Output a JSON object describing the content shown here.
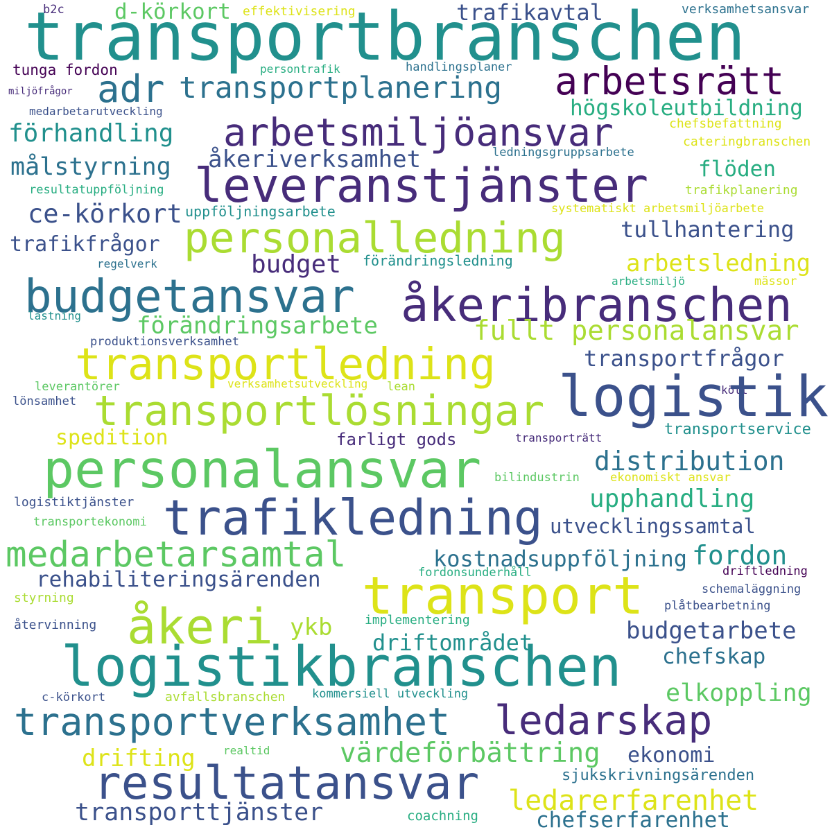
{
  "palette": {
    "background": "#ffffff",
    "c1": "#440154",
    "c2": "#472c7a",
    "c3": "#3b518b",
    "c4": "#2c718e",
    "c5": "#21908d",
    "c6": "#27ad81",
    "c7": "#5cc863",
    "c8": "#aadc32",
    "c9": "#dde318",
    "c10": "#fde725"
  },
  "words": [
    {
      "text": "transportbranschen",
      "color": "#21908d"
    },
    {
      "text": "b2c",
      "color": "#472c7a"
    },
    {
      "text": "d-körkort",
      "color": "#5cc863"
    },
    {
      "text": "effektivisering",
      "color": "#dde318"
    },
    {
      "text": "trafikavtal",
      "color": "#3b518b"
    },
    {
      "text": "verksamhetsansvar",
      "color": "#2c718e"
    },
    {
      "text": "adr",
      "color": "#2c718e"
    },
    {
      "text": "transportplanering",
      "color": "#2c718e"
    },
    {
      "text": "arbetsrätt",
      "color": "#440154"
    },
    {
      "text": "tunga fordon",
      "color": "#440154"
    },
    {
      "text": "persontrafik",
      "color": "#27ad81"
    },
    {
      "text": "handlingsplaner",
      "color": "#2c718e"
    },
    {
      "text": "miljöfrågor",
      "color": "#472c7a"
    },
    {
      "text": "medarbetarutveckling",
      "color": "#3b518b"
    },
    {
      "text": "högskoleutbildning",
      "color": "#27ad81"
    },
    {
      "text": "förhandling",
      "color": "#21908d"
    },
    {
      "text": "arbetsmiljöansvar",
      "color": "#472c7a"
    },
    {
      "text": "chefsbefattning",
      "color": "#dde318"
    },
    {
      "text": "cateringbranschen",
      "color": "#dde318"
    },
    {
      "text": "ledningsgruppsarbete",
      "color": "#2c718e"
    },
    {
      "text": "målstyrning",
      "color": "#2c718e"
    },
    {
      "text": "åkeriverksamhet",
      "color": "#3b518b"
    },
    {
      "text": "leveranstjänster",
      "color": "#472c7a"
    },
    {
      "text": "flöden",
      "color": "#27ad81"
    },
    {
      "text": "resultatuppföljning",
      "color": "#27ad81"
    },
    {
      "text": "trafikplanering",
      "color": "#aadc32"
    },
    {
      "text": "ce-körkort",
      "color": "#3b518b"
    },
    {
      "text": "uppföljningsarbete",
      "color": "#21908d"
    },
    {
      "text": "systematiskt arbetsmiljöarbete",
      "color": "#dde318"
    },
    {
      "text": "personalledning",
      "color": "#aadc32"
    },
    {
      "text": "tullhantering",
      "color": "#3b518b"
    },
    {
      "text": "trafikfrågor",
      "color": "#3b518b"
    },
    {
      "text": "budget",
      "color": "#472c7a"
    },
    {
      "text": "förändringsledning",
      "color": "#21908d"
    },
    {
      "text": "arbetsledning",
      "color": "#dde318"
    },
    {
      "text": "regelverk",
      "color": "#2c718e"
    },
    {
      "text": "arbetsmiljö",
      "color": "#27ad81"
    },
    {
      "text": "mässor",
      "color": "#dde318"
    },
    {
      "text": "budgetansvar",
      "color": "#2c718e"
    },
    {
      "text": "åkeribranschen",
      "color": "#472c7a"
    },
    {
      "text": "lastning",
      "color": "#21908d"
    },
    {
      "text": "förändringsarbete",
      "color": "#5cc863"
    },
    {
      "text": "fullt personalansvar",
      "color": "#aadc32"
    },
    {
      "text": "produktionsverksamhet",
      "color": "#3b518b"
    },
    {
      "text": "transportledning",
      "color": "#dde318"
    },
    {
      "text": "transportfrågor",
      "color": "#3b518b"
    },
    {
      "text": "leverantörer",
      "color": "#5cc863"
    },
    {
      "text": "verksamhetsutveckling",
      "color": "#dde318"
    },
    {
      "text": "lean",
      "color": "#aadc32"
    },
    {
      "text": "kött",
      "color": "#472c7a"
    },
    {
      "text": "logistik",
      "color": "#3b518b"
    },
    {
      "text": "lönsamhet",
      "color": "#3b518b"
    },
    {
      "text": "transportlösningar",
      "color": "#aadc32"
    },
    {
      "text": "spedition",
      "color": "#dde318"
    },
    {
      "text": "farligt gods",
      "color": "#472c7a"
    },
    {
      "text": "transporträtt",
      "color": "#472c7a"
    },
    {
      "text": "transportservice",
      "color": "#21908d"
    },
    {
      "text": "personalansvar",
      "color": "#5cc863"
    },
    {
      "text": "distribution",
      "color": "#2c718e"
    },
    {
      "text": "bilindustrin",
      "color": "#5cc863"
    },
    {
      "text": "ekonomiskt ansvar",
      "color": "#dde318"
    },
    {
      "text": "logistiktjänster",
      "color": "#3b518b"
    },
    {
      "text": "trafikledning",
      "color": "#3b518b"
    },
    {
      "text": "upphandling",
      "color": "#27ad81"
    },
    {
      "text": "transportekonomi",
      "color": "#5cc863"
    },
    {
      "text": "utvecklingssamtal",
      "color": "#3b518b"
    },
    {
      "text": "medarbetarsamtal",
      "color": "#5cc863"
    },
    {
      "text": "kostnadsuppföljning",
      "color": "#2c718e"
    },
    {
      "text": "fordon",
      "color": "#21908d"
    },
    {
      "text": "rehabiliteringsärenden",
      "color": "#3b518b"
    },
    {
      "text": "fordonsunderhåll",
      "color": "#27ad81"
    },
    {
      "text": "driftledning",
      "color": "#440154"
    },
    {
      "text": "transport",
      "color": "#dde318"
    },
    {
      "text": "styrning",
      "color": "#aadc32"
    },
    {
      "text": "schemaläggning",
      "color": "#3b518b"
    },
    {
      "text": "åkeri",
      "color": "#aadc32"
    },
    {
      "text": "ykb",
      "color": "#aadc32"
    },
    {
      "text": "plåtbearbetning",
      "color": "#3b518b"
    },
    {
      "text": "återvinning",
      "color": "#3b518b"
    },
    {
      "text": "implementering",
      "color": "#27ad81"
    },
    {
      "text": "budgetarbete",
      "color": "#3b518b"
    },
    {
      "text": "driftområdet",
      "color": "#21908d"
    },
    {
      "text": "logistikbranschen",
      "color": "#21908d"
    },
    {
      "text": "chefskap",
      "color": "#2c718e"
    },
    {
      "text": "elkoppling",
      "color": "#5cc863"
    },
    {
      "text": "c-körkort",
      "color": "#3b518b"
    },
    {
      "text": "avfallsbranschen",
      "color": "#aadc32"
    },
    {
      "text": "kommersiell utveckling",
      "color": "#21908d"
    },
    {
      "text": "transportverksamhet",
      "color": "#2c718e"
    },
    {
      "text": "ledarskap",
      "color": "#472c7a"
    },
    {
      "text": "värdeförbättring",
      "color": "#5cc863"
    },
    {
      "text": "drifting",
      "color": "#dde318"
    },
    {
      "text": "realtid",
      "color": "#5cc863"
    },
    {
      "text": "ekonomi",
      "color": "#3b518b"
    },
    {
      "text": "resultatansvar",
      "color": "#3b518b"
    },
    {
      "text": "sjukskrivningsärenden",
      "color": "#2c718e"
    },
    {
      "text": "ledarerfarenhet",
      "color": "#dde318"
    },
    {
      "text": "transporttjänster",
      "color": "#3b518b"
    },
    {
      "text": "coachning",
      "color": "#27ad81"
    },
    {
      "text": "chefserfarenhet",
      "color": "#2c718e"
    }
  ]
}
